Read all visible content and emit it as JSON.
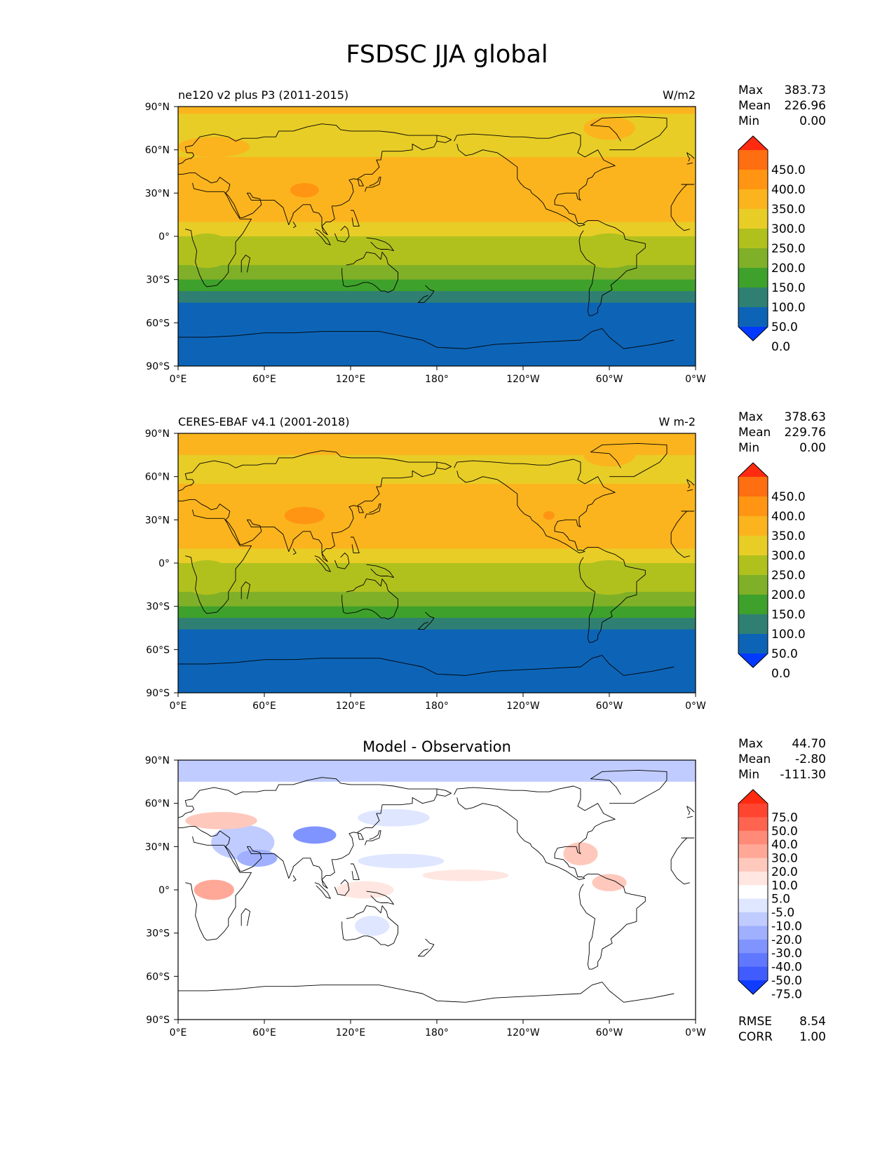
{
  "figure": {
    "title": "FSDSC JJA global"
  },
  "lat_labels": [
    "90°N",
    "60°N",
    "30°N",
    "0°",
    "30°S",
    "60°S",
    "90°S"
  ],
  "lon_labels": [
    "0°E",
    "60°E",
    "120°E",
    "180°",
    "120°W",
    "60°W",
    "0°W"
  ],
  "panels": [
    {
      "left_title": "ne120 v2 plus P3 (2011-2015)",
      "center_title": "",
      "right_title": "W/m2",
      "stats": [
        {
          "label": "Max",
          "value": "383.73"
        },
        {
          "label": "Mean",
          "value": "226.96"
        },
        {
          "label": "Min",
          "value": "0.00"
        }
      ],
      "colorbar": {
        "labels": [
          "450.0",
          "400.0",
          "350.0",
          "300.0",
          "250.0",
          "200.0",
          "150.0",
          "100.0",
          "50.0",
          "0.0"
        ],
        "colors": [
          "#ff2a10",
          "#ff6e10",
          "#ff9512",
          "#fbb41e",
          "#e8cd27",
          "#b0c11e",
          "#7fb028",
          "#3ea12b",
          "#2f8072",
          "#0d64b6",
          "#0039ff"
        ]
      }
    },
    {
      "left_title": "CERES-EBAF v4.1 (2001-2018)",
      "center_title": "",
      "right_title": "W m-2",
      "stats": [
        {
          "label": "Max",
          "value": "378.63"
        },
        {
          "label": "Mean",
          "value": "229.76"
        },
        {
          "label": "Min",
          "value": "0.00"
        }
      ],
      "colorbar": {
        "labels": [
          "450.0",
          "400.0",
          "350.0",
          "300.0",
          "250.0",
          "200.0",
          "150.0",
          "100.0",
          "50.0",
          "0.0"
        ],
        "colors": [
          "#ff2a10",
          "#ff6e10",
          "#ff9512",
          "#fbb41e",
          "#e8cd27",
          "#b0c11e",
          "#7fb028",
          "#3ea12b",
          "#2f8072",
          "#0d64b6",
          "#0039ff"
        ]
      }
    },
    {
      "left_title": "",
      "center_title": "Model - Observation",
      "right_title": "",
      "stats": [
        {
          "label": "Max",
          "value": "44.70"
        },
        {
          "label": "Mean",
          "value": "-2.80"
        },
        {
          "label": "Min",
          "value": "-111.30"
        }
      ],
      "colorbar": {
        "labels": [
          "75.0",
          "50.0",
          "40.0",
          "30.0",
          "20.0",
          "10.0",
          "5.0",
          "-5.0",
          "-10.0",
          "-20.0",
          "-30.0",
          "-40.0",
          "-50.0",
          "-75.0"
        ],
        "colors": [
          "#ff2a10",
          "#ff4530",
          "#ff6450",
          "#ff8a78",
          "#ffa898",
          "#ffc8bc",
          "#ffe6e0",
          "#ffffff",
          "#dfe6ff",
          "#c0ccff",
          "#a0b0ff",
          "#8094ff",
          "#6078ff",
          "#405cff",
          "#0f3cff"
        ]
      },
      "bottom_stats": [
        {
          "label": "RMSE",
          "value": "8.54"
        },
        {
          "label": "CORR",
          "value": "1.00"
        }
      ]
    }
  ],
  "chart_data": {
    "type": "heatmap",
    "title": "FSDSC JJA global",
    "x_range": [
      0,
      360
    ],
    "y_range": [
      -90,
      90
    ],
    "panels": [
      {
        "name": "ne120 v2 plus P3 (2011-2015)",
        "units": "W/m2",
        "zonal_bands_lat_value": [
          {
            "lat": [
              85,
              90
            ],
            "value": 300
          },
          {
            "lat": [
              55,
              85
            ],
            "value": 275
          },
          {
            "lat": [
              45,
              55
            ],
            "value": 300
          },
          {
            "lat": [
              10,
              45
            ],
            "value": 325
          },
          {
            "lat": [
              0,
              10
            ],
            "value": 275
          },
          {
            "lat": [
              -20,
              0
            ],
            "value": 225
          },
          {
            "lat": [
              -30,
              -20
            ],
            "value": 175
          },
          {
            "lat": [
              -38,
              -30
            ],
            "value": 125
          },
          {
            "lat": [
              -46,
              -38
            ],
            "value": 75
          },
          {
            "lat": [
              -82,
              -46
            ],
            "value": 25
          },
          {
            "lat": [
              -90,
              -82
            ],
            "value": 0
          }
        ]
      },
      {
        "name": "CERES-EBAF v4.1 (2001-2018)",
        "units": "W m-2",
        "zonal_bands_lat_value": [
          {
            "lat": [
              85,
              90
            ],
            "value": 325
          },
          {
            "lat": [
              75,
              85
            ],
            "value": 300
          },
          {
            "lat": [
              55,
              75
            ],
            "value": 275
          },
          {
            "lat": [
              10,
              55
            ],
            "value": 325
          },
          {
            "lat": [
              0,
              10
            ],
            "value": 275
          },
          {
            "lat": [
              -20,
              0
            ],
            "value": 225
          },
          {
            "lat": [
              -30,
              -20
            ],
            "value": 175
          },
          {
            "lat": [
              -38,
              -30
            ],
            "value": 125
          },
          {
            "lat": [
              -46,
              -38
            ],
            "value": 75
          },
          {
            "lat": [
              -82,
              -46
            ],
            "value": 25
          },
          {
            "lat": [
              -90,
              -82
            ],
            "value": 0
          }
        ]
      },
      {
        "name": "Model - Observation",
        "units": "",
        "zonal_bands_lat_value": [
          {
            "lat": [
              75,
              90
            ],
            "value": -15
          },
          {
            "lat": [
              60,
              75
            ],
            "value": -5
          },
          {
            "lat": [
              -90,
              60
            ],
            "value": 0
          }
        ]
      }
    ]
  }
}
